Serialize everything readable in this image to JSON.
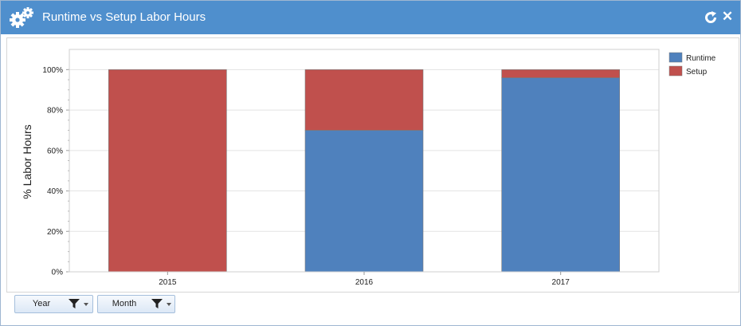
{
  "header": {
    "title": "Runtime vs Setup Labor Hours",
    "close_label": "✕"
  },
  "filters": [
    {
      "label": "Year"
    },
    {
      "label": "Month"
    }
  ],
  "chart_data": {
    "type": "bar",
    "stacked": true,
    "categories": [
      "2015",
      "2016",
      "2017"
    ],
    "series": [
      {
        "name": "Runtime",
        "color": "#4f81bd",
        "values": [
          0,
          70,
          96
        ]
      },
      {
        "name": "Setup",
        "color": "#c0504d",
        "values": [
          100,
          30,
          4
        ]
      }
    ],
    "ylabel": "% Labor Hours",
    "ylim": [
      0,
      110
    ],
    "yticks": [
      "0%",
      "20%",
      "40%",
      "60%",
      "80%",
      "100%"
    ],
    "grid": true,
    "legend_position": "top-right"
  }
}
